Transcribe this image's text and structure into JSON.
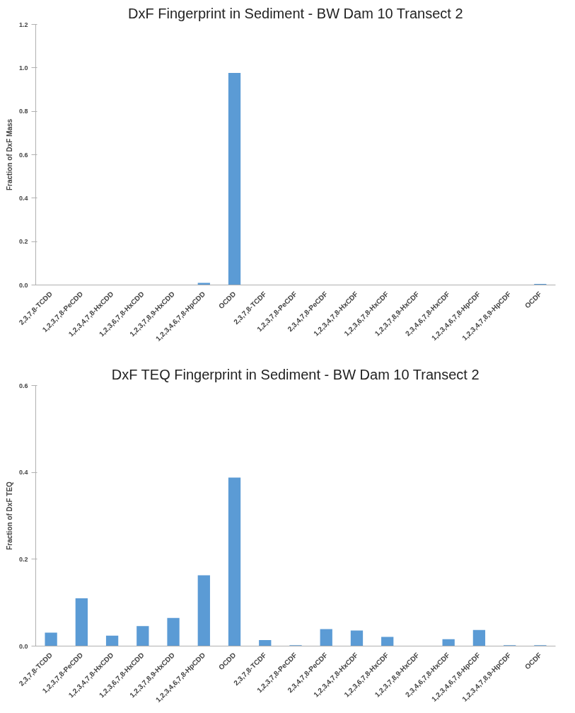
{
  "chart_data": [
    {
      "type": "bar",
      "title": "DxF Fingerprint in Sediment - BW Dam 10 Transect 2",
      "ylabel": "Fraction of DxF Mass",
      "categories": [
        "2,3,7,8-TCDD",
        "1,2,3,7,8-PeCDD",
        "1,2,3,4,7,8-HxCDD",
        "1,2,3,6,7,8-HxCDD",
        "1,2,3,7,8,9-HxCDD",
        "1,2,3,4,6,7,8-HpCDD",
        "OCDD",
        "2,3,7,8-TCDF",
        "1,2,3,7,8-PeCDF",
        "2,3,4,7,8-PeCDF",
        "1,2,3,4,7,8-HxCDF",
        "1,2,3,6,7,8-HxCDF",
        "1,2,3,7,8,9-HxCDF",
        "2,3,4,6,7,8-HxCDF",
        "1,2,3,4,6,7,8-HpCDF",
        "1,2,3,4,7,8,9-HpCDF",
        "OCDF"
      ],
      "values": [
        0,
        0,
        0,
        0,
        0,
        0.01,
        0.977,
        0,
        0,
        0,
        0,
        0,
        0,
        0,
        0,
        0,
        0.005
      ],
      "color": "#5b9bd5",
      "ylim": [
        0,
        1.2
      ],
      "yticks": [
        {
          "value": 0,
          "label": "0.0"
        },
        {
          "value": 0.2,
          "label": "0.2"
        },
        {
          "value": 0.4,
          "label": "0.4"
        },
        {
          "value": 0.6,
          "label": "0.6"
        },
        {
          "value": 0.8,
          "label": "0.8"
        },
        {
          "value": 1.0,
          "label": "1.0"
        },
        {
          "value": 1.2,
          "label": "1.2"
        }
      ],
      "grid": false
    },
    {
      "type": "bar",
      "title": "DxF TEQ Fingerprint in Sediment - BW Dam 10 Transect 2",
      "ylabel": "Fraction of DxF TEQ",
      "categories": [
        "2,3,7,8-TCDD",
        "1,2,3,7,8-PeCDD",
        "1,2,3,4,7,8-HxCDD",
        "1,2,3,6,7,8-HxCDD",
        "1,2,3,7,8,9-HxCDD",
        "1,2,3,4,6,7,8-HpCDD",
        "OCDD",
        "2,3,7,8-TCDF",
        "1,2,3,7,8-PeCDF",
        "2,3,4,7,8-PeCDF",
        "1,2,3,4,7,8-HxCDF",
        "1,2,3,6,7,8-HxCDF",
        "1,2,3,7,8,9-HxCDF",
        "2,3,4,6,7,8-HxCDF",
        "1,2,3,4,6,7,8-HpCDF",
        "1,2,3,4,7,8,9-HpCDF",
        "OCDF"
      ],
      "values": [
        0.031,
        0.11,
        0.024,
        0.046,
        0.065,
        0.163,
        0.388,
        0.014,
        0.002,
        0.039,
        0.036,
        0.021,
        0,
        0.016,
        0.037,
        0.002,
        0.002
      ],
      "color": "#5b9bd5",
      "ylim": [
        0,
        0.6
      ],
      "yticks": [
        {
          "value": 0,
          "label": "0.0"
        },
        {
          "value": 0.2,
          "label": "0.2"
        },
        {
          "value": 0.4,
          "label": "0.4"
        },
        {
          "value": 0.6,
          "label": "0.6"
        }
      ],
      "grid": false
    }
  ]
}
